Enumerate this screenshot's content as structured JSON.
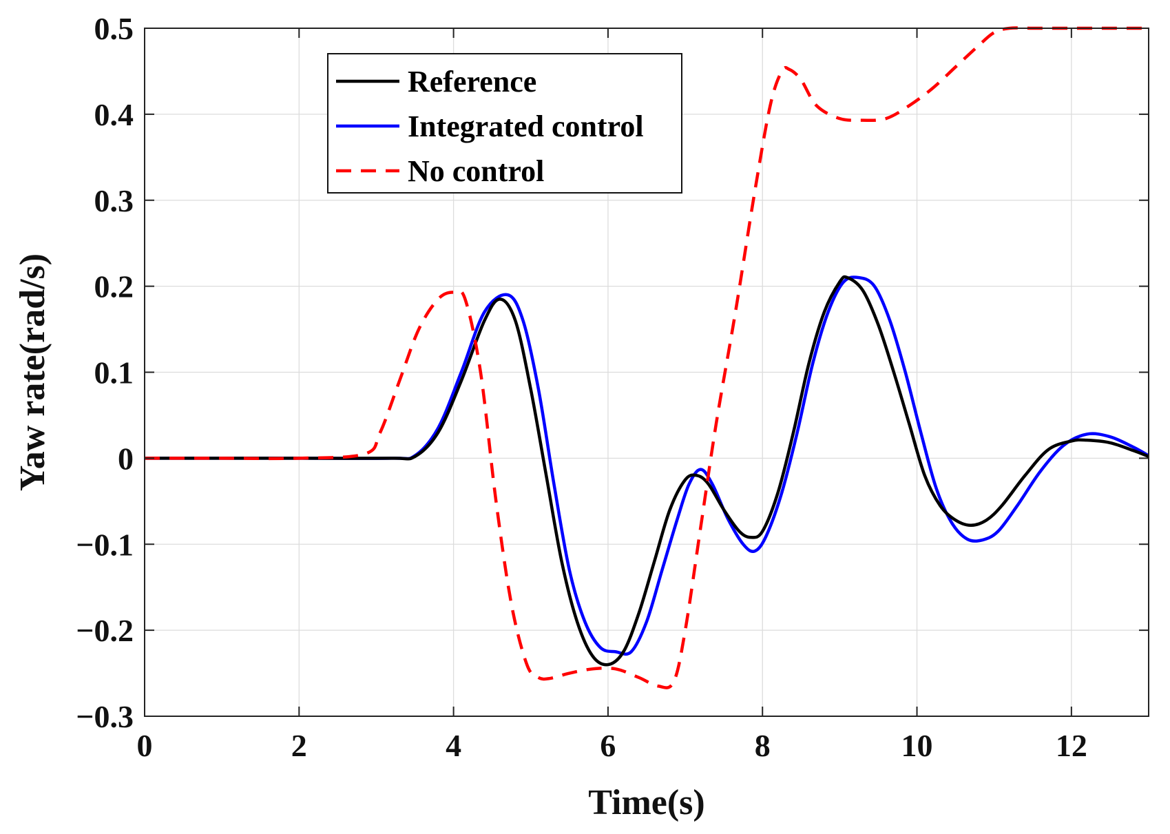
{
  "chart_data": {
    "type": "line",
    "title": "",
    "xlabel": "Time(s)",
    "ylabel": "Yaw rate(rad/s)",
    "xlim": [
      0,
      13
    ],
    "ylim": [
      -0.3,
      0.5
    ],
    "grid": true,
    "legend_position": "top-left",
    "x_ticks": [
      0,
      2,
      4,
      6,
      8,
      10,
      12
    ],
    "x_tick_labels": [
      "0",
      "2",
      "4",
      "6",
      "8",
      "10",
      "12"
    ],
    "y_ticks": [
      -0.3,
      -0.2,
      -0.1,
      0,
      0.1,
      0.2,
      0.3,
      0.4,
      0.5
    ],
    "y_tick_labels": [
      "−0.3",
      "−0.2",
      "−0.1",
      "0",
      "0.1",
      "0.2",
      "0.3",
      "0.4",
      "0.5"
    ],
    "series": [
      {
        "name": "Reference",
        "color": "#000000",
        "style": "solid",
        "x": [
          0,
          1,
          2,
          3.2,
          3.5,
          3.8,
          4.1,
          4.4,
          4.6,
          4.8,
          5.0,
          5.2,
          5.4,
          5.6,
          5.8,
          6.0,
          6.2,
          6.4,
          6.6,
          6.8,
          7.0,
          7.15,
          7.3,
          7.5,
          7.7,
          7.85,
          8.0,
          8.2,
          8.4,
          8.6,
          8.8,
          9.0,
          9.1,
          9.3,
          9.5,
          9.7,
          9.9,
          10.1,
          10.3,
          10.5,
          10.7,
          10.9,
          11.1,
          11.4,
          11.7,
          12.0,
          12.2,
          12.5,
          12.8,
          13.0
        ],
        "y": [
          0,
          0,
          0,
          0,
          0.002,
          0.03,
          0.09,
          0.16,
          0.185,
          0.16,
          0.08,
          -0.02,
          -0.12,
          -0.19,
          -0.23,
          -0.24,
          -0.225,
          -0.18,
          -0.12,
          -0.06,
          -0.025,
          -0.02,
          -0.03,
          -0.06,
          -0.085,
          -0.092,
          -0.085,
          -0.04,
          0.03,
          0.11,
          0.17,
          0.205,
          0.21,
          0.195,
          0.155,
          0.1,
          0.04,
          -0.02,
          -0.055,
          -0.072,
          -0.078,
          -0.072,
          -0.055,
          -0.02,
          0.01,
          0.02,
          0.021,
          0.018,
          0.009,
          0.002
        ]
      },
      {
        "name": "Integrated control",
        "color": "#0000ff",
        "style": "solid",
        "x": [
          0,
          1,
          2,
          3.2,
          3.5,
          3.8,
          4.1,
          4.4,
          4.7,
          4.9,
          5.1,
          5.3,
          5.5,
          5.7,
          5.9,
          6.1,
          6.3,
          6.5,
          6.7,
          6.9,
          7.05,
          7.2,
          7.35,
          7.55,
          7.75,
          7.9,
          8.05,
          8.25,
          8.45,
          8.65,
          8.85,
          9.05,
          9.25,
          9.45,
          9.65,
          9.85,
          10.05,
          10.25,
          10.45,
          10.65,
          10.85,
          11.05,
          11.3,
          11.6,
          11.9,
          12.2,
          12.5,
          12.8,
          13.0
        ],
        "y": [
          0,
          0,
          0,
          0,
          0.003,
          0.035,
          0.1,
          0.17,
          0.19,
          0.16,
          0.08,
          -0.03,
          -0.13,
          -0.19,
          -0.22,
          -0.225,
          -0.225,
          -0.19,
          -0.13,
          -0.07,
          -0.03,
          -0.013,
          -0.03,
          -0.07,
          -0.1,
          -0.108,
          -0.09,
          -0.04,
          0.03,
          0.11,
          0.17,
          0.205,
          0.21,
          0.2,
          0.16,
          0.1,
          0.03,
          -0.035,
          -0.075,
          -0.094,
          -0.095,
          -0.085,
          -0.055,
          -0.015,
          0.015,
          0.028,
          0.025,
          0.013,
          0.003
        ]
      },
      {
        "name": "No control",
        "color": "#ff0000",
        "style": "dashed",
        "x": [
          0,
          1,
          2,
          2.85,
          3.05,
          3.3,
          3.55,
          3.8,
          4.0,
          4.15,
          4.35,
          4.55,
          4.75,
          4.95,
          5.1,
          5.25,
          5.5,
          5.8,
          6.1,
          6.4,
          6.65,
          6.85,
          7.0,
          7.2,
          7.4,
          7.65,
          7.9,
          8.1,
          8.25,
          8.35,
          8.5,
          8.7,
          9.0,
          9.3,
          9.6,
          9.9,
          10.2,
          10.5,
          10.8,
          11.0,
          11.2,
          11.5,
          12.0,
          12.5,
          13.0
        ],
        "y": [
          0,
          0,
          0,
          0.005,
          0.03,
          0.09,
          0.15,
          0.185,
          0.193,
          0.185,
          0.1,
          -0.05,
          -0.17,
          -0.24,
          -0.255,
          -0.256,
          -0.25,
          -0.245,
          -0.245,
          -0.255,
          -0.265,
          -0.26,
          -0.2,
          -0.08,
          0.04,
          0.17,
          0.31,
          0.41,
          0.45,
          0.452,
          0.44,
          0.41,
          0.395,
          0.393,
          0.395,
          0.41,
          0.43,
          0.455,
          0.48,
          0.495,
          0.5,
          0.5,
          0.5,
          0.5,
          0.5
        ]
      }
    ]
  }
}
